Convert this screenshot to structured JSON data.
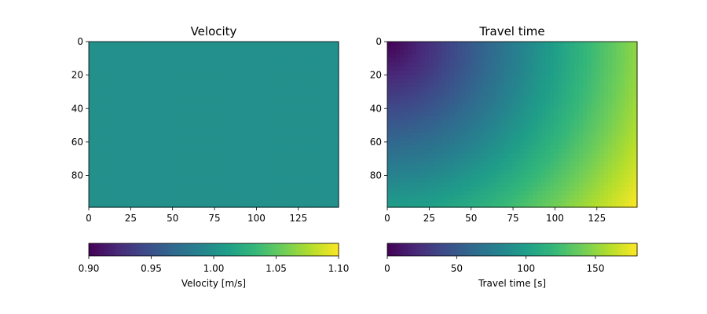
{
  "chart_data": [
    {
      "type": "heatmap",
      "title": "Velocity",
      "x_range": [
        0,
        149
      ],
      "y_range": [
        0,
        99
      ],
      "y_inverted": true,
      "x_ticks": [
        0,
        25,
        50,
        75,
        100,
        125
      ],
      "y_ticks": [
        0,
        20,
        40,
        60,
        80
      ],
      "colormap": "viridis",
      "field": "constant",
      "constant_value": 1.0,
      "colorbar": {
        "label": "Velocity [m/s]",
        "range": [
          0.9,
          1.1
        ],
        "ticks": [
          "0.90",
          "0.95",
          "1.00",
          "1.05",
          "1.10"
        ],
        "tick_values": [
          0.9,
          0.95,
          1.0,
          1.05,
          1.1
        ],
        "orientation": "horizontal"
      }
    },
    {
      "type": "heatmap",
      "title": "Travel time",
      "x_range": [
        0,
        149
      ],
      "y_range": [
        0,
        99
      ],
      "y_inverted": true,
      "x_ticks": [
        0,
        25,
        50,
        75,
        100,
        125
      ],
      "y_ticks": [
        0,
        20,
        40,
        60,
        80
      ],
      "colormap": "viridis",
      "field": "distance_from_origin",
      "source": [
        0,
        0
      ],
      "colorbar": {
        "label": "Travel time [s]",
        "range": [
          0,
          180
        ],
        "ticks": [
          "0",
          "50",
          "100",
          "150"
        ],
        "tick_values": [
          0,
          50,
          100,
          150
        ],
        "orientation": "horizontal"
      }
    }
  ]
}
